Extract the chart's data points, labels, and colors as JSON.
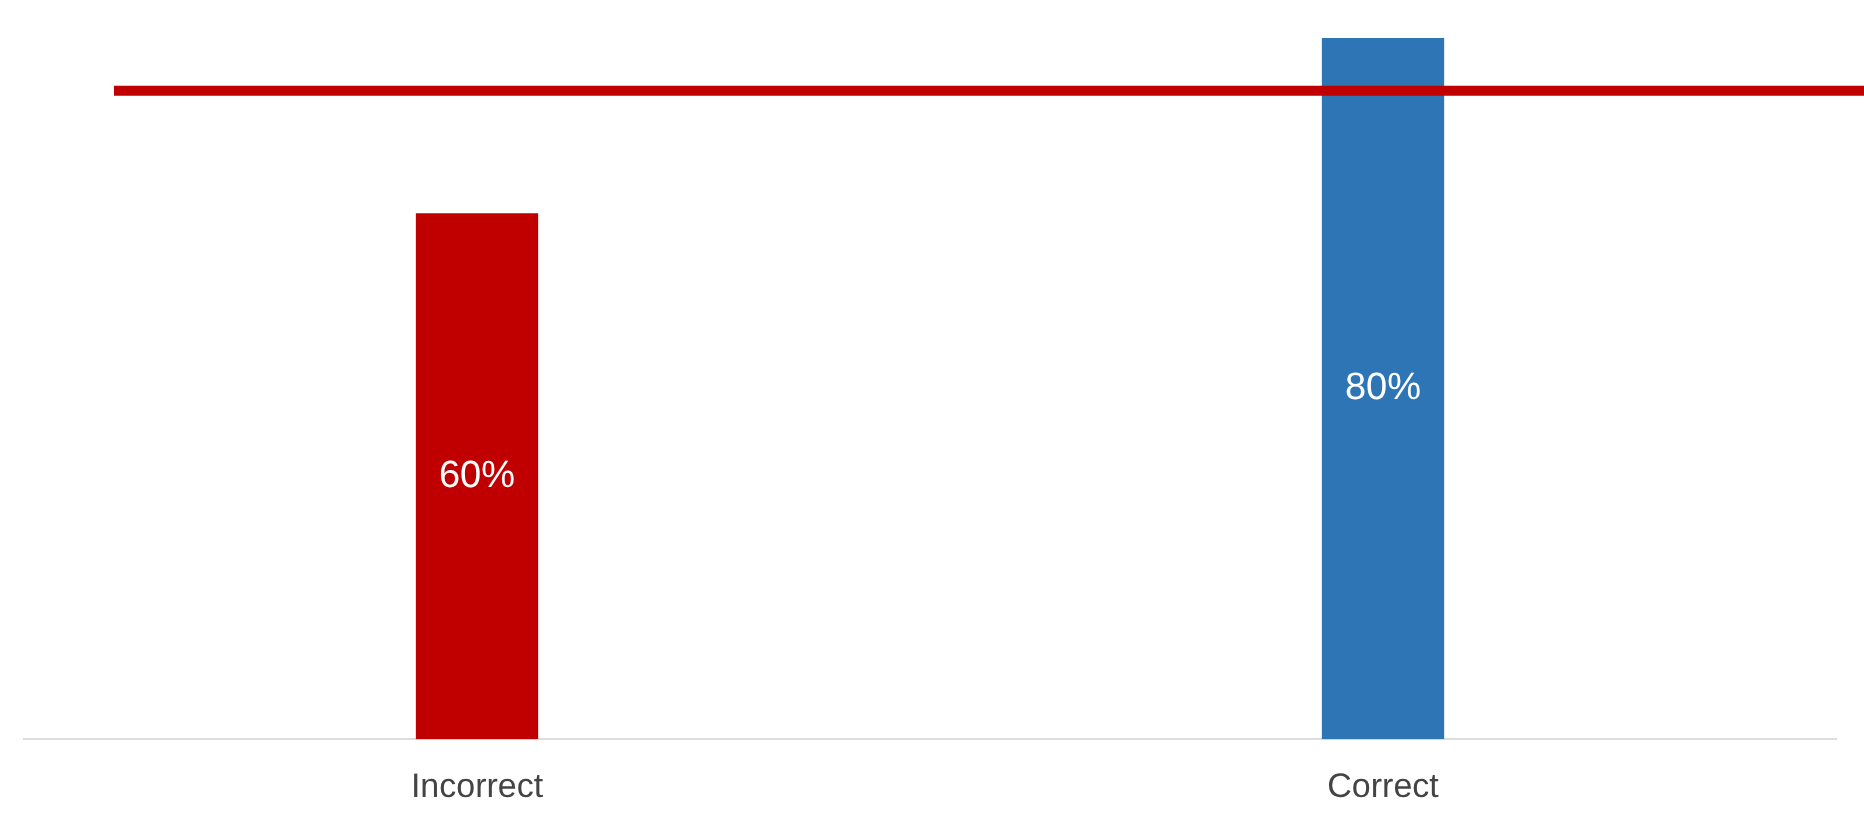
{
  "chart_data": {
    "type": "bar",
    "categories": [
      "Incorrect",
      "Correct"
    ],
    "values": [
      60,
      80
    ],
    "colors": [
      "#c00000",
      "#2e75b6"
    ],
    "value_labels": [
      "60%",
      "80%"
    ],
    "ref_lines": [
      {
        "axis": "y",
        "value": 74,
        "color": "#c00000"
      }
    ],
    "grid": false,
    "legend": false
  }
}
